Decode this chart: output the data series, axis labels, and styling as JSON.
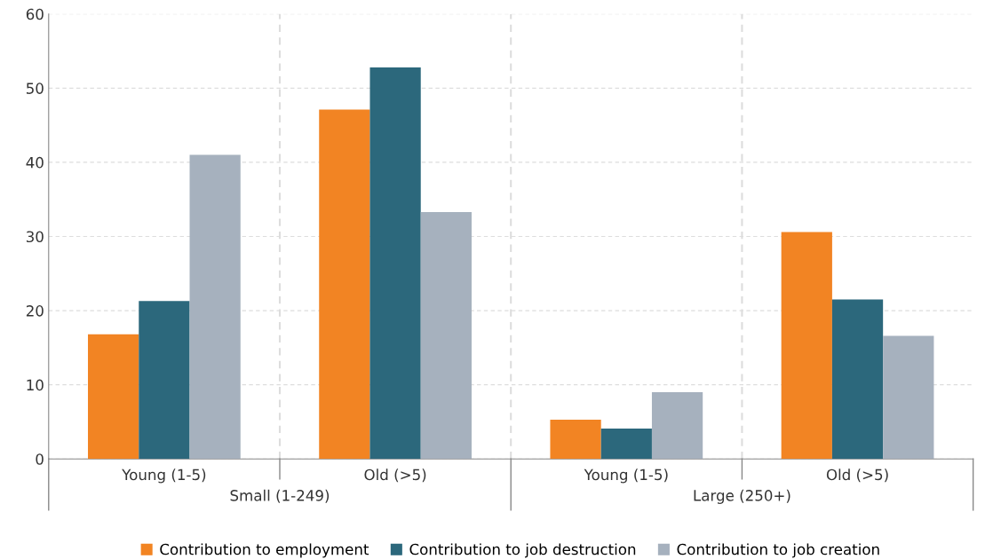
{
  "chart_data": {
    "type": "bar",
    "categories": [
      "Young (1-5)",
      "Old (>5)",
      "Young (1-5)",
      "Old (>5)"
    ],
    "series": [
      {
        "name": "Contribution to employment",
        "color": "#f28423",
        "values": [
          16.8,
          47.1,
          5.3,
          30.6
        ]
      },
      {
        "name": "Contribution to job destruction",
        "color": "#2c687c",
        "values": [
          21.3,
          52.8,
          4.1,
          21.5
        ]
      },
      {
        "name": "Contribution to job creation",
        "color": "#a6b1be",
        "values": [
          41.0,
          33.3,
          9.0,
          16.6
        ]
      }
    ],
    "annotations": [
      "Small (1-249)",
      "Large (250+)"
    ],
    "ylim": [
      0,
      60
    ],
    "yticks": [
      0,
      10,
      20,
      30,
      40,
      50,
      60
    ],
    "grid": true,
    "legend": "bottom"
  }
}
